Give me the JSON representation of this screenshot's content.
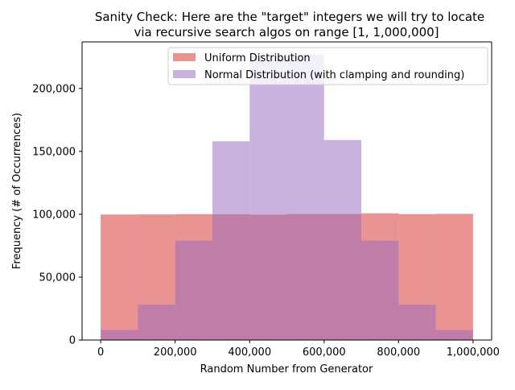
{
  "chart_data": {
    "type": "histogram",
    "title": "Sanity Check: Here are the \"target\" integers we will try to locate",
    "subtitle": "via recursive search algos on range [1, 1,000,000]",
    "xlabel": "Random Number from Generator",
    "ylabel": "Frequency (# of Occurrences)",
    "xlim": [
      -50000,
      1050000
    ],
    "ylim": [
      0,
      237000
    ],
    "x_ticks": [
      0,
      200000,
      400000,
      600000,
      800000,
      1000000
    ],
    "x_tick_labels": [
      "0",
      "200,000",
      "400,000",
      "600,000",
      "800,000",
      "1,000,000"
    ],
    "y_ticks": [
      0,
      50000,
      100000,
      150000,
      200000
    ],
    "y_tick_labels": [
      "0",
      "50,000",
      "100,000",
      "150,000",
      "200,000"
    ],
    "bin_edges": [
      0,
      100000,
      200000,
      300000,
      400000,
      500000,
      600000,
      700000,
      800000,
      900000,
      1000000
    ],
    "legend_position": "upper center",
    "grid": false,
    "series": [
      {
        "name": "Uniform Distribution",
        "color": "#d62728",
        "alpha": 0.5,
        "values": [
          99800,
          99900,
          100100,
          100000,
          99700,
          100200,
          100100,
          100700,
          100100,
          100300
        ]
      },
      {
        "name": "Normal Distribution (with clamping and rounding)",
        "color": "#9467bd",
        "alpha": 0.5,
        "values": [
          8000,
          28000,
          79000,
          158000,
          226000,
          227000,
          159000,
          79000,
          28000,
          8000
        ]
      }
    ]
  }
}
